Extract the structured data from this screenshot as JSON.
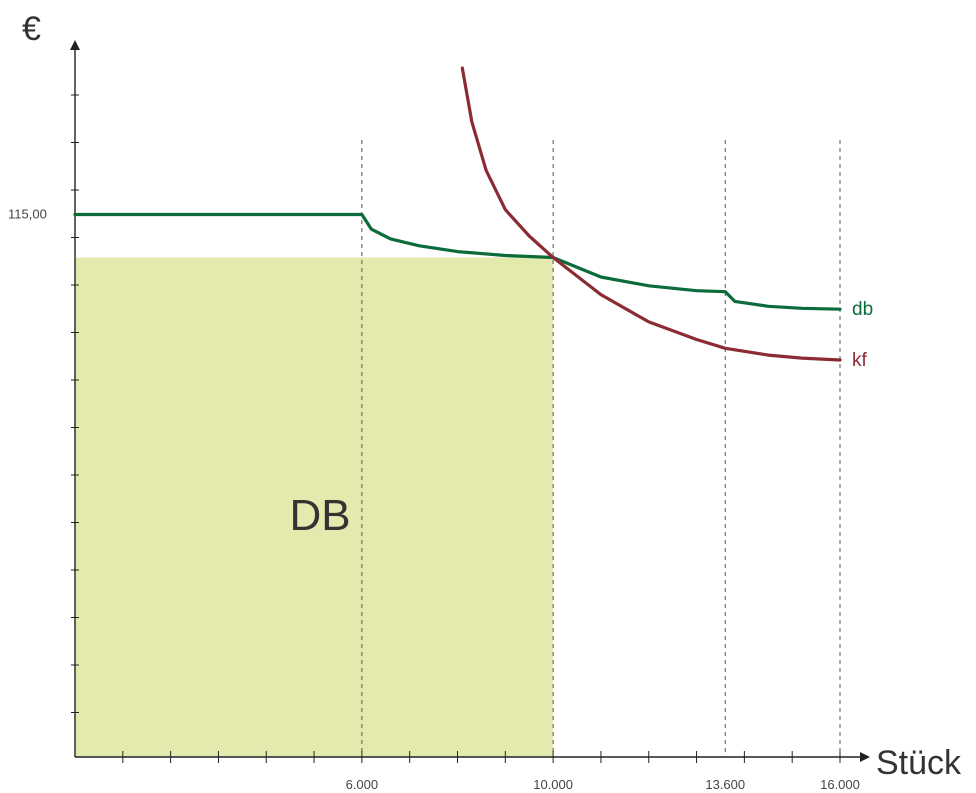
{
  "chart_data": {
    "type": "line",
    "xlabel": "Stück",
    "ylabel": "€",
    "xlim": [
      0,
      16000
    ],
    "x_ticks": [
      6000,
      10000,
      13600,
      16000
    ],
    "x_tick_labels": [
      "6.000",
      "10.000",
      "13.600",
      "16.000"
    ],
    "y_tick_labels": [
      {
        "value": 115,
        "label": "115,00"
      }
    ],
    "grid": false,
    "vertical_reference_lines": [
      6000,
      10000,
      13600,
      16000
    ],
    "area": {
      "label": "DB",
      "x": [
        0,
        10000
      ],
      "top_value": 110.6,
      "color": "#e4eaae"
    },
    "series": [
      {
        "name": "db",
        "color": "#0b6b3a",
        "x": [
          0,
          6000,
          6200,
          6600,
          7200,
          8000,
          9000,
          10000,
          11000,
          12000,
          13000,
          13600,
          13800,
          14500,
          15200,
          16000
        ],
        "values": [
          115,
          115,
          113.5,
          112.5,
          111.8,
          111.2,
          110.8,
          110.6,
          108.6,
          107.7,
          107.2,
          107.1,
          106.1,
          105.6,
          105.4,
          105.3
        ]
      },
      {
        "name": "kf",
        "color": "#8b2b33",
        "x": [
          8100,
          8300,
          8600,
          9000,
          9500,
          10000,
          11000,
          12000,
          13000,
          13600,
          14500,
          15200,
          16000
        ],
        "values": [
          130,
          124.5,
          119.5,
          115.5,
          112.8,
          110.6,
          106.8,
          104.0,
          102.2,
          101.3,
          100.6,
          100.3,
          100.1
        ]
      }
    ]
  }
}
